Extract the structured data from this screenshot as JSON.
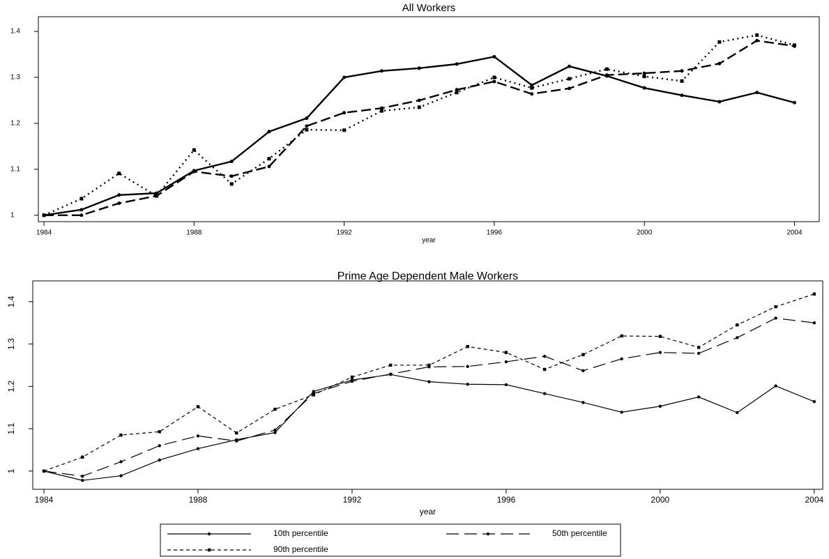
{
  "chart_data": [
    {
      "type": "line",
      "title": "All Workers",
      "x_label": "year",
      "x": [
        1984,
        1985,
        1986,
        1987,
        1988,
        1989,
        1990,
        1991,
        1992,
        1993,
        1994,
        1995,
        1996,
        1997,
        1998,
        1999,
        2000,
        2001,
        2002,
        2003,
        2004
      ],
      "xlim": [
        1983.85,
        2004.66
      ],
      "xticks": [
        1984,
        1988,
        1992,
        1996,
        2000,
        2004
      ],
      "ylim": [
        0.986,
        1.432
      ],
      "yticks": [
        1,
        1.1,
        1.2,
        1.3,
        1.4
      ],
      "series": [
        {
          "color": "#000000",
          "dash": "solid",
          "marker": "circle",
          "values": [
            1.0,
            1.012,
            1.044,
            1.048,
            1.097,
            1.117,
            1.182,
            1.211,
            1.3,
            1.314,
            1.32,
            1.329,
            1.345,
            1.283,
            1.324,
            1.303,
            1.277,
            1.261,
            1.247,
            1.267,
            1.245
          ]
        },
        {
          "color": "#000000",
          "dash": "longdash",
          "marker": "circle",
          "values": [
            1.0,
            1.0,
            1.026,
            1.042,
            1.095,
            1.085,
            1.106,
            1.194,
            1.223,
            1.233,
            1.25,
            1.273,
            1.291,
            1.264,
            1.276,
            1.305,
            1.309,
            1.314,
            1.33,
            1.38,
            1.368
          ]
        },
        {
          "color": "#000000",
          "dash": "dot",
          "marker": "square",
          "values": [
            1.0,
            1.036,
            1.091,
            1.042,
            1.142,
            1.068,
            1.123,
            1.186,
            1.185,
            1.227,
            1.235,
            1.267,
            1.3,
            1.277,
            1.297,
            1.318,
            1.302,
            1.292,
            1.377,
            1.392,
            1.37
          ]
        }
      ]
    },
    {
      "type": "line",
      "title": "Prime Age Dependent Male Workers",
      "x_label": "year",
      "x": [
        1984,
        1985,
        1986,
        1987,
        1988,
        1989,
        1990,
        1991,
        1992,
        1993,
        1994,
        1995,
        1996,
        1997,
        1998,
        1999,
        2000,
        2001,
        2002,
        2003,
        2004
      ],
      "xlim": [
        1983.71,
        2004.22
      ],
      "xticks": [
        1984,
        1988,
        1992,
        1996,
        2000,
        2004
      ],
      "ylim": [
        0.957,
        1.449
      ],
      "yticks": [
        1,
        1.1,
        1.2,
        1.3,
        1.4
      ],
      "series": [
        {
          "name": "10th percentile",
          "color": "#000000",
          "dash": "solid",
          "marker": "circle",
          "values": [
            1.0,
            0.978,
            0.989,
            1.026,
            1.053,
            1.074,
            1.091,
            1.188,
            1.215,
            1.228,
            1.211,
            1.205,
            1.204,
            1.183,
            1.162,
            1.139,
            1.153,
            1.175,
            1.138,
            1.201,
            1.164
          ]
        },
        {
          "name": "50th percentile",
          "color": "#000000",
          "dash": "longdash",
          "marker": "circle",
          "values": [
            1.0,
            0.988,
            1.022,
            1.06,
            1.083,
            1.071,
            1.097,
            1.183,
            1.212,
            1.229,
            1.246,
            1.247,
            1.258,
            1.271,
            1.237,
            1.265,
            1.28,
            1.278,
            1.315,
            1.361,
            1.35
          ]
        },
        {
          "name": "90th percentile",
          "color": "#000000",
          "dash": "shortdash",
          "marker": "square",
          "values": [
            1.0,
            1.033,
            1.085,
            1.093,
            1.152,
            1.09,
            1.146,
            1.18,
            1.222,
            1.25,
            1.25,
            1.294,
            1.28,
            1.24,
            1.275,
            1.319,
            1.318,
            1.292,
            1.345,
            1.388,
            1.418
          ]
        }
      ]
    }
  ]
}
